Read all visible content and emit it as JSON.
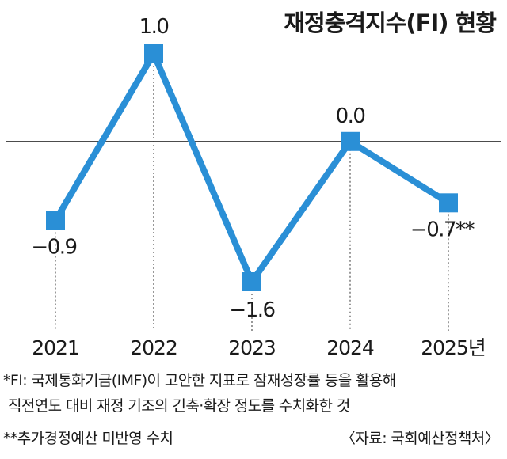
{
  "chart_data": {
    "type": "line",
    "title": "재정충격지수(FI) 현황",
    "categories": [
      "2021",
      "2022",
      "2023",
      "2024",
      "2025년"
    ],
    "series": [
      {
        "values": [
          -0.9,
          1.0,
          -1.6,
          0.0,
          -0.7
        ]
      }
    ],
    "data_labels": [
      "−0.9",
      "1.0",
      "−1.6",
      "0.0",
      "−0.7**"
    ],
    "xlabel": "",
    "ylabel": "",
    "ylim": [
      -1.6,
      1.0
    ],
    "grid": false,
    "zero_line": true,
    "color": "#2a8fd6"
  },
  "notes": {
    "note1": "*FI: 국제통화기금(IMF)이 고안한 지표로 잠재성장률 등을 활용해",
    "note2": "직전연도 대비 재정 기조의 긴축·확장 정도를 수치화한 것",
    "note3": "**추가경정예산 미반영 수치",
    "source": "〈자료: 국회예산정책처〉"
  }
}
